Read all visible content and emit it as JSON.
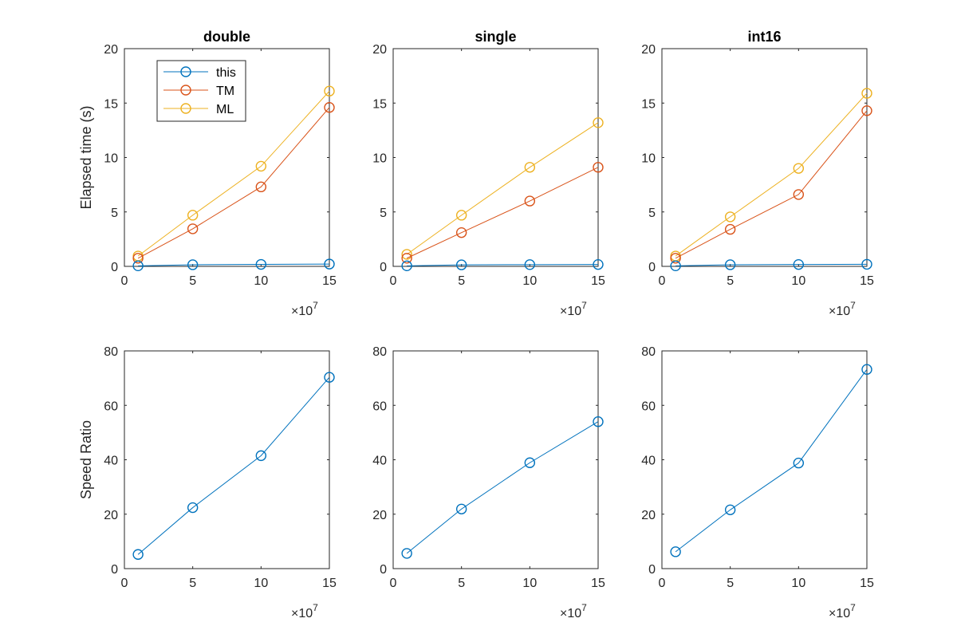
{
  "figure": {
    "background": "#ffffff",
    "axis_color": "#262626",
    "colors": {
      "this": "#0072BD",
      "TM": "#D95319",
      "ML": "#EDB120"
    }
  },
  "chart_data": [
    {
      "type": "line",
      "title": "double",
      "xlabel": "",
      "ylabel": "Elapsed time (s)",
      "x_exponent_label": "×10",
      "x_exponent_power": "7",
      "x": [
        1,
        5,
        10,
        15
      ],
      "xlim": [
        0,
        15
      ],
      "ylim": [
        0,
        20
      ],
      "xticks": [
        0,
        5,
        10,
        15
      ],
      "yticks": [
        0,
        5,
        10,
        15,
        20
      ],
      "grid": false,
      "legend": {
        "placement": "top-left",
        "entries": [
          "this",
          "TM",
          "ML"
        ]
      },
      "series": [
        {
          "name": "this",
          "color": "#0072BD",
          "values": [
            0.05,
            0.15,
            0.18,
            0.21
          ]
        },
        {
          "name": "TM",
          "color": "#D95319",
          "values": [
            0.75,
            3.45,
            7.3,
            14.6
          ]
        },
        {
          "name": "ML",
          "color": "#EDB120",
          "values": [
            0.95,
            4.7,
            9.2,
            16.1
          ]
        }
      ]
    },
    {
      "type": "line",
      "title": "single",
      "xlabel": "",
      "ylabel": "",
      "x_exponent_label": "×10",
      "x_exponent_power": "7",
      "x": [
        1,
        5,
        10,
        15
      ],
      "xlim": [
        0,
        15
      ],
      "ylim": [
        0,
        20
      ],
      "xticks": [
        0,
        5,
        10,
        15
      ],
      "yticks": [
        0,
        5,
        10,
        15,
        20
      ],
      "grid": false,
      "series": [
        {
          "name": "this",
          "color": "#0072BD",
          "values": [
            0.05,
            0.14,
            0.16,
            0.17
          ]
        },
        {
          "name": "TM",
          "color": "#D95319",
          "values": [
            0.75,
            3.1,
            6.0,
            9.1
          ]
        },
        {
          "name": "ML",
          "color": "#EDB120",
          "values": [
            1.1,
            4.7,
            9.1,
            13.2
          ]
        }
      ]
    },
    {
      "type": "line",
      "title": "int16",
      "xlabel": "",
      "ylabel": "",
      "x_exponent_label": "×10",
      "x_exponent_power": "7",
      "x": [
        1,
        5,
        10,
        15
      ],
      "xlim": [
        0,
        15
      ],
      "ylim": [
        0,
        20
      ],
      "xticks": [
        0,
        5,
        10,
        15
      ],
      "yticks": [
        0,
        5,
        10,
        15,
        20
      ],
      "grid": false,
      "series": [
        {
          "name": "this",
          "color": "#0072BD",
          "values": [
            0.05,
            0.15,
            0.17,
            0.19
          ]
        },
        {
          "name": "TM",
          "color": "#D95319",
          "values": [
            0.75,
            3.4,
            6.6,
            14.3
          ]
        },
        {
          "name": "ML",
          "color": "#EDB120",
          "values": [
            0.95,
            4.55,
            9.0,
            15.9
          ]
        }
      ]
    },
    {
      "type": "line",
      "title": "",
      "xlabel": "",
      "ylabel": "Speed Ratio",
      "x_exponent_label": "×10",
      "x_exponent_power": "7",
      "x": [
        1,
        5,
        10,
        15
      ],
      "xlim": [
        0,
        15
      ],
      "ylim": [
        0,
        80
      ],
      "xticks": [
        0,
        5,
        10,
        15
      ],
      "yticks": [
        0,
        20,
        40,
        60,
        80
      ],
      "grid": false,
      "series": [
        {
          "color": "#0072BD",
          "values": [
            5.2,
            22.4,
            41.5,
            70.3
          ]
        }
      ]
    },
    {
      "type": "line",
      "title": "",
      "xlabel": "",
      "ylabel": "",
      "x_exponent_label": "×10",
      "x_exponent_power": "7",
      "x": [
        1,
        5,
        10,
        15
      ],
      "xlim": [
        0,
        15
      ],
      "ylim": [
        0,
        80
      ],
      "xticks": [
        0,
        5,
        10,
        15
      ],
      "yticks": [
        0,
        20,
        40,
        60,
        80
      ],
      "grid": false,
      "series": [
        {
          "color": "#0072BD",
          "values": [
            5.6,
            21.9,
            38.9,
            54.0
          ]
        }
      ]
    },
    {
      "type": "line",
      "title": "",
      "xlabel": "",
      "ylabel": "",
      "x_exponent_label": "×10",
      "x_exponent_power": "7",
      "x": [
        1,
        5,
        10,
        15
      ],
      "xlim": [
        0,
        15
      ],
      "ylim": [
        0,
        80
      ],
      "xticks": [
        0,
        5,
        10,
        15
      ],
      "yticks": [
        0,
        20,
        40,
        60,
        80
      ],
      "grid": false,
      "series": [
        {
          "color": "#0072BD",
          "values": [
            6.2,
            21.6,
            38.8,
            73.2
          ]
        }
      ]
    }
  ]
}
